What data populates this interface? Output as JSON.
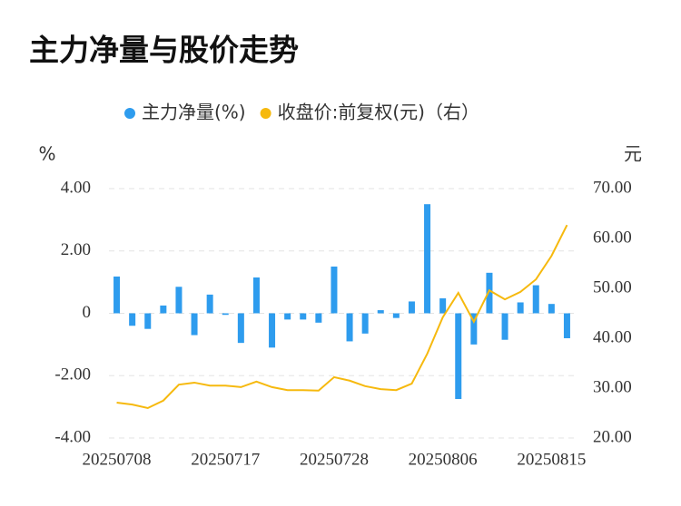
{
  "chart_data": {
    "type": "bar",
    "title": "主力净量与股价走势",
    "y_label": "%",
    "y2_label": "元",
    "categories": [
      "20250708",
      null,
      null,
      null,
      null,
      null,
      null,
      "20250717",
      null,
      null,
      null,
      null,
      null,
      null,
      "20250728",
      null,
      null,
      null,
      null,
      null,
      null,
      "20250806",
      null,
      null,
      null,
      null,
      null,
      null,
      "20250815",
      null
    ],
    "series": [
      {
        "name": "主力净量(%)",
        "color": "#2e9cee",
        "type": "bar",
        "values": [
          1.18,
          -0.4,
          -0.5,
          0.25,
          0.85,
          -0.7,
          0.6,
          -0.05,
          -0.95,
          1.15,
          -1.1,
          -0.2,
          -0.2,
          -0.3,
          1.5,
          -0.9,
          -0.65,
          0.1,
          -0.15,
          0.38,
          3.5,
          0.48,
          -2.75,
          -1.0,
          1.3,
          -0.85,
          0.35,
          0.9,
          0.3,
          -0.8
        ]
      },
      {
        "name": "收盘价:前复权(元)（右）",
        "color": "#f6b90e",
        "type": "line",
        "axis": "y2",
        "values": [
          27.1,
          26.7,
          26.0,
          27.5,
          30.7,
          31.1,
          30.5,
          30.5,
          30.2,
          31.3,
          30.2,
          29.6,
          29.6,
          29.5,
          32.2,
          31.5,
          30.4,
          29.8,
          29.6,
          30.9,
          36.9,
          44.2,
          49.1,
          43.3,
          49.6,
          47.8,
          49.3,
          51.8,
          56.5,
          62.7
        ]
      }
    ],
    "ylim": [
      -4,
      4
    ],
    "yticks": [
      {
        "value": -4,
        "label": "-4.00"
      },
      {
        "value": -2,
        "label": "-2.00"
      },
      0,
      {
        "value": 2,
        "label": "2.00"
      },
      {
        "value": 4,
        "label": "4.00"
      }
    ],
    "y2lim": [
      20,
      70
    ],
    "y2ticks": [
      {
        "value": 20,
        "label": "20.00"
      },
      {
        "value": 30,
        "label": "30.00"
      },
      {
        "value": 40,
        "label": "40.00"
      },
      {
        "value": 50,
        "label": "50.00"
      },
      {
        "value": 60,
        "label": "60.00"
      },
      {
        "value": 70,
        "label": "70.00"
      }
    ],
    "grid": true
  }
}
